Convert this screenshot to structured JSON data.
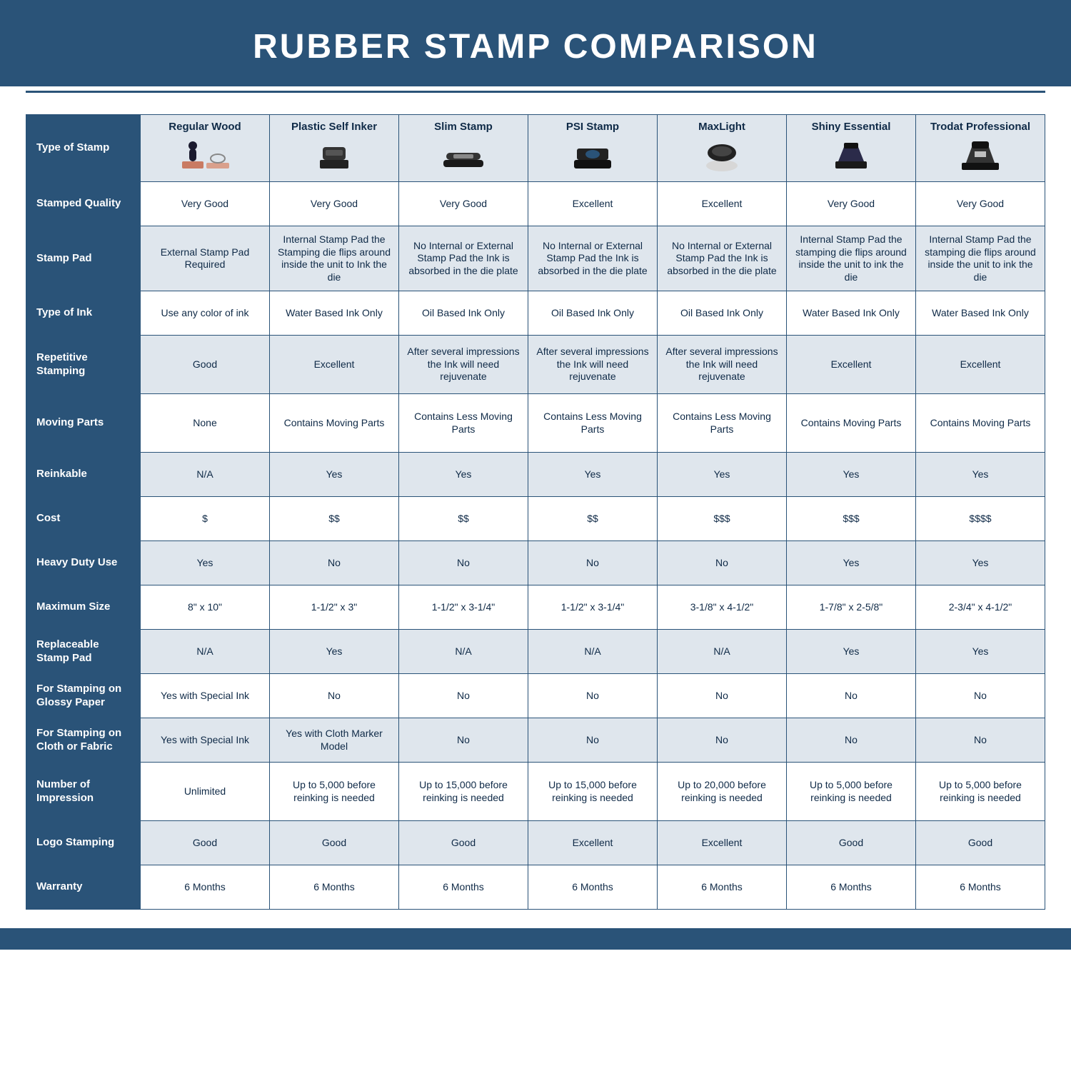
{
  "title": "RUBBER STAMP COMPARISON",
  "colors": {
    "brand": "#2a5378",
    "shaded": "#dfe6ed",
    "text": "#0f2a47",
    "white": "#ffffff"
  },
  "corner_label": "Type of Stamp",
  "columns": [
    {
      "label": "Regular Wood"
    },
    {
      "label": "Plastic Self Inker"
    },
    {
      "label": "Slim Stamp"
    },
    {
      "label": "PSI Stamp"
    },
    {
      "label": "MaxLight"
    },
    {
      "label": "Shiny Essential"
    },
    {
      "label": "Trodat Professional"
    }
  ],
  "rows": [
    {
      "label": "Stamped Quality",
      "shaded": false,
      "tall": false,
      "cells": [
        "Very Good",
        "Very Good",
        "Very Good",
        "Excellent",
        "Excellent",
        "Very Good",
        "Very Good"
      ]
    },
    {
      "label": "Stamp Pad",
      "shaded": true,
      "tall": true,
      "cells": [
        "External Stamp Pad Required",
        "Internal Stamp Pad the Stamping die flips around inside the unit to Ink the die",
        "No Internal or External Stamp Pad the Ink is absorbed in the die plate",
        "No Internal or External Stamp Pad the Ink is absorbed in the die plate",
        "No Internal or External Stamp Pad the Ink is absorbed in the die plate",
        "Internal Stamp Pad the stamping die flips around inside the unit to ink the die",
        "Internal Stamp Pad the stamping die flips around inside the unit to ink the die"
      ]
    },
    {
      "label": "Type of Ink",
      "shaded": false,
      "tall": false,
      "cells": [
        "Use any color of ink",
        "Water Based Ink Only",
        "Oil Based Ink Only",
        "Oil Based Ink Only",
        "Oil Based Ink Only",
        "Water Based Ink Only",
        "Water Based Ink Only"
      ]
    },
    {
      "label": "Repetitive Stamping",
      "shaded": true,
      "tall": true,
      "cells": [
        "Good",
        "Excellent",
        "After several impressions the Ink will need rejuvenate",
        "After several impressions the Ink will need rejuvenate",
        "After several impressions the Ink will need rejuvenate",
        "Excellent",
        "Excellent"
      ]
    },
    {
      "label": "Moving Parts",
      "shaded": false,
      "tall": true,
      "cells": [
        "None",
        "Contains Moving Parts",
        "Contains Less Moving Parts",
        "Contains Less Moving Parts",
        "Contains Less Moving Parts",
        "Contains Moving Parts",
        "Contains Moving Parts"
      ]
    },
    {
      "label": "Reinkable",
      "shaded": true,
      "tall": false,
      "cells": [
        "N/A",
        "Yes",
        "Yes",
        "Yes",
        "Yes",
        "Yes",
        "Yes"
      ]
    },
    {
      "label": "Cost",
      "shaded": false,
      "tall": false,
      "cells": [
        "$",
        "$$",
        "$$",
        "$$",
        "$$$",
        "$$$",
        "$$$$"
      ]
    },
    {
      "label": "Heavy Duty Use",
      "shaded": true,
      "tall": false,
      "cells": [
        "Yes",
        "No",
        "No",
        "No",
        "No",
        "Yes",
        "Yes"
      ]
    },
    {
      "label": "Maximum Size",
      "shaded": false,
      "tall": false,
      "cells": [
        "8\" x 10\"",
        "1-1/2\" x 3\"",
        "1-1/2\" x 3-1/4\"",
        "1-1/2\" x 3-1/4\"",
        "3-1/8\" x 4-1/2\"",
        "1-7/8\" x 2-5/8\"",
        "2-3/4\" x 4-1/2\""
      ]
    },
    {
      "label": "Replaceable Stamp Pad",
      "shaded": true,
      "tall": false,
      "cells": [
        "N/A",
        "Yes",
        "N/A",
        "N/A",
        "N/A",
        "Yes",
        "Yes"
      ]
    },
    {
      "label": "For Stamping on Glossy Paper",
      "shaded": false,
      "tall": false,
      "cells": [
        "Yes with Special Ink",
        "No",
        "No",
        "No",
        "No",
        "No",
        "No"
      ]
    },
    {
      "label": "For Stamping on Cloth or Fabric",
      "shaded": true,
      "tall": false,
      "cells": [
        "Yes with Special Ink",
        "Yes with Cloth Marker Model",
        "No",
        "No",
        "No",
        "No",
        "No"
      ]
    },
    {
      "label": "Number of Impression",
      "shaded": false,
      "tall": true,
      "cells": [
        "Unlimited",
        "Up to 5,000 before reinking is needed",
        "Up to 15,000 before reinking is needed",
        "Up to 15,000 before reinking is needed",
        "Up to 20,000 before reinking is needed",
        "Up to 5,000 before reinking is needed",
        "Up to 5,000 before reinking is needed"
      ]
    },
    {
      "label": "Logo Stamping",
      "shaded": true,
      "tall": false,
      "cells": [
        "Good",
        "Good",
        "Good",
        "Excellent",
        "Excellent",
        "Good",
        "Good"
      ]
    },
    {
      "label": "Warranty",
      "shaded": false,
      "tall": false,
      "cells": [
        "6 Months",
        "6 Months",
        "6 Months",
        "6 Months",
        "6 Months",
        "6 Months",
        "6 Months"
      ]
    }
  ]
}
